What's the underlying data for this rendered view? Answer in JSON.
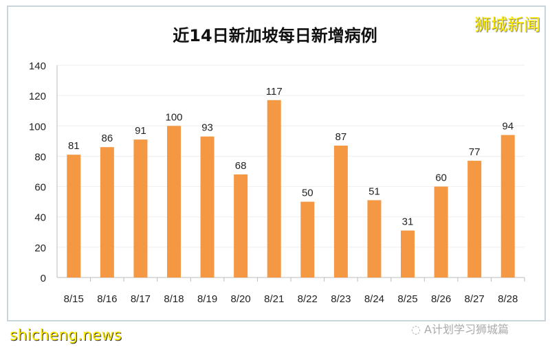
{
  "logo": "狮城新闻",
  "watermark": "shicheng.news",
  "source": "A计划学习狮城篇",
  "colors": {
    "bar": "#f59843",
    "grid": "#eeeeee"
  },
  "chart_data": {
    "type": "bar",
    "title": "近14日新加坡每日新增病例",
    "categories": [
      "8/15",
      "8/16",
      "8/17",
      "8/18",
      "8/19",
      "8/20",
      "8/21",
      "8/22",
      "8/23",
      "8/24",
      "8/25",
      "8/26",
      "8/27",
      "8/28"
    ],
    "values": [
      81,
      86,
      91,
      100,
      93,
      68,
      117,
      50,
      87,
      51,
      31,
      60,
      77,
      94
    ],
    "ylim": [
      0,
      140
    ],
    "yticks": [
      0,
      20,
      40,
      60,
      80,
      100,
      120,
      140
    ],
    "grid": true,
    "data_labels": true
  }
}
